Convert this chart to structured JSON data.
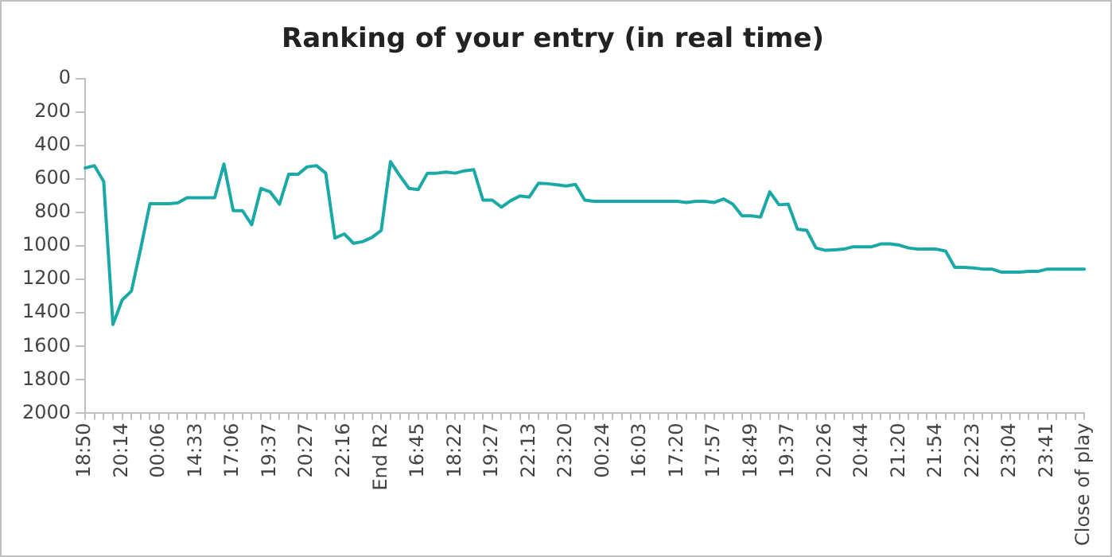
{
  "chart_data": {
    "type": "line",
    "title": "Ranking of your entry (in real time)",
    "categories": [
      "18:50",
      null,
      null,
      null,
      "20:14",
      null,
      null,
      null,
      "00:06",
      null,
      null,
      null,
      "14:33",
      null,
      null,
      null,
      "17:06",
      null,
      null,
      null,
      "19:37",
      null,
      null,
      null,
      "20:27",
      null,
      null,
      null,
      "22:16",
      null,
      null,
      null,
      "End R2",
      null,
      null,
      null,
      "16:45",
      null,
      null,
      null,
      "18:22",
      null,
      null,
      null,
      "19:27",
      null,
      null,
      null,
      "22:13",
      null,
      null,
      null,
      "23:20",
      null,
      null,
      null,
      "00:24",
      null,
      null,
      null,
      "16:03",
      null,
      null,
      null,
      "17:20",
      null,
      null,
      null,
      "17:57",
      null,
      null,
      null,
      "18:49",
      null,
      null,
      null,
      "19:37",
      null,
      null,
      null,
      "20:26",
      null,
      null,
      null,
      "20:44",
      null,
      null,
      null,
      "21:20",
      null,
      null,
      null,
      "21:54",
      null,
      null,
      null,
      "22:23",
      null,
      null,
      null,
      "23:04",
      null,
      null,
      null,
      "23:41",
      null,
      null,
      null,
      "Close of play"
    ],
    "series": [
      {
        "color": "#1aa9a6",
        "values": [
          534,
          520,
          614,
          1469,
          1323,
          1270,
          1016,
          747,
          747,
          747,
          743,
          712,
          712,
          712,
          712,
          510,
          789,
          789,
          873,
          656,
          677,
          750,
          572,
          572,
          527,
          520,
          565,
          953,
          928,
          984,
          974,
          949,
          907,
          496,
          579,
          656,
          663,
          565,
          565,
          558,
          565,
          551,
          544,
          726,
          726,
          768,
          729,
          701,
          708,
          625,
          628,
          635,
          642,
          632,
          726,
          733,
          733,
          733,
          733,
          733,
          733,
          733,
          733,
          733,
          733,
          740,
          733,
          733,
          740,
          719,
          750,
          820,
          820,
          827,
          677,
          754,
          750,
          900,
          907,
          1012,
          1026,
          1023,
          1019,
          1005,
          1005,
          1005,
          988,
          988,
          995,
          1012,
          1019,
          1019,
          1019,
          1030,
          1128,
          1128,
          1131,
          1138,
          1138,
          1156,
          1156,
          1156,
          1152,
          1152,
          1138,
          1138,
          1138,
          1138,
          1138
        ]
      }
    ],
    "ylim": [
      2000,
      0
    ],
    "yticks": [
      0,
      200,
      400,
      600,
      800,
      1000,
      1200,
      1400,
      1600,
      1800,
      2000
    ],
    "grid": false,
    "legend": false,
    "marker": "none",
    "line_style": "solid"
  }
}
